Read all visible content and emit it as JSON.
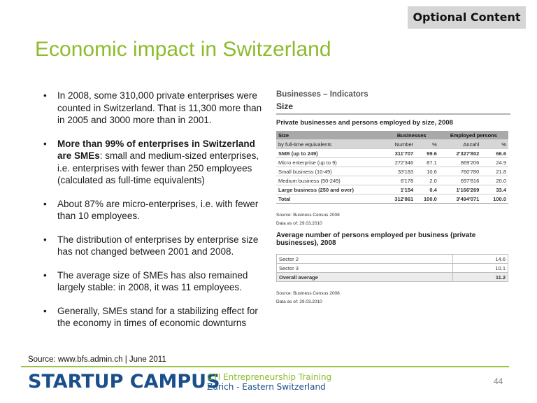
{
  "badge": "Optional Content",
  "title": "Economic impact in Switzerland",
  "bullets": [
    {
      "bold": "",
      "text": "In 2008, some 310,000 private enterprises were counted in Switzerland. That is 11,300 more than in 2005 and 3000 more than in 2001."
    },
    {
      "bold": "More than 99% of enterprises in Switzerland are SMEs",
      "text": ": small and medium-sized enterprises, i.e. enterprises with fewer than 250 employees (calculated as full-time equivalents)"
    },
    {
      "bold": "",
      "text": "About 87% are micro-enterprises, i.e. with fewer than 10 employees."
    },
    {
      "bold": "",
      "text": "The distribution of enterprises by enterprise size has not changed between 2001 and 2008."
    },
    {
      "bold": "",
      "text": "The average size of SMEs has also remained largely stable: in 2008, it was 11 employees."
    },
    {
      "bold": "",
      "text": "Generally, SMEs stand for a stabilizing effect for the economy in times of economic downturns"
    }
  ],
  "panel": {
    "heading": "Businesses – Indicators",
    "subheading": "Size",
    "table1_title": "Private businesses and persons employed by size, 2008",
    "table1": {
      "header": [
        "Size",
        "Businesses",
        "Employed persons"
      ],
      "subheader": [
        "by full-time equivalents",
        "Number",
        "%",
        "Anzahl",
        "%"
      ],
      "rows": [
        {
          "label": "SMB (up to 249)",
          "n": "311'707",
          "p": "99.6",
          "a": "2'327'802",
          "q": "66.6",
          "bold": true
        },
        {
          "label": "Micro enterprise (up to 9)",
          "n": "272'346",
          "p": "87.1",
          "a": "869'206",
          "q": "24.9",
          "bold": false
        },
        {
          "label": "Small business (10-49)",
          "n": "33'183",
          "p": "10.6",
          "a": "760'780",
          "q": "21.8",
          "bold": false
        },
        {
          "label": "Medium business (50-249)",
          "n": "6'178",
          "p": "2.0",
          "a": "697'816",
          "q": "20.0",
          "bold": false
        },
        {
          "label": "Large business (250 and over)",
          "n": "1'154",
          "p": "0.4",
          "a": "1'166'269",
          "q": "33.4",
          "bold": true
        },
        {
          "label": "Total",
          "n": "312'861",
          "p": "100.0",
          "a": "3'494'071",
          "q": "100.0",
          "bold": true
        }
      ]
    },
    "source1": "Source: Business Census 2008",
    "date1": "Data as of: 29.03.2010",
    "table2_title": "Average number of persons employed per business (private businesses), 2008",
    "table2": [
      {
        "label": "Sector 2",
        "value": "14.6"
      },
      {
        "label": "Sector 3",
        "value": "10.1"
      },
      {
        "label": "Overall average",
        "value": "11.2"
      }
    ],
    "source2": "Source: Business Census 2008",
    "date2": "Data as of: 29.03.2010"
  },
  "source_note": "Source: www.bfs.admin.ch | June 2011",
  "footer": {
    "logo": "STARTUP CAMPUS",
    "tagline1": "CTI Entrepreneurship Training",
    "tagline2": "Zurich - Eastern Switzerland",
    "page": "44"
  },
  "colors": {
    "accent_green": "#8dbb2c",
    "brand_blue": "#1a4f8b",
    "badge_bg": "#d6d6d6"
  }
}
